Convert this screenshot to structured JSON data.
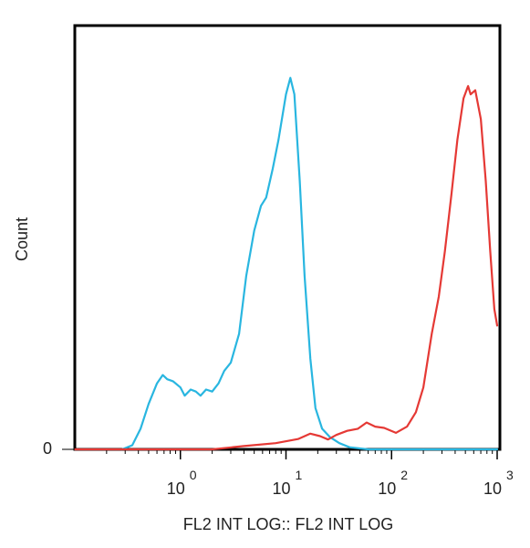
{
  "chart_data": {
    "type": "line",
    "title": "",
    "xlabel": "FL2 INT LOG:: FL2 INT LOG",
    "ylabel": "Count",
    "x_scale": "log",
    "xlim": [
      0.1,
      1000
    ],
    "ylim": [
      0,
      100
    ],
    "grid": false,
    "x_ticks": [
      {
        "base": "10",
        "exp": "0",
        "value": 1
      },
      {
        "base": "10",
        "exp": "1",
        "value": 10
      },
      {
        "base": "10",
        "exp": "2",
        "value": 100
      },
      {
        "base": "10",
        "exp": "3",
        "value": 1000
      }
    ],
    "y_ticks": [
      {
        "label": "0",
        "value": 0
      }
    ],
    "series": [
      {
        "color": "#29b6e0",
        "points": [
          [
            0.28,
            0
          ],
          [
            0.35,
            1
          ],
          [
            0.42,
            5
          ],
          [
            0.5,
            11
          ],
          [
            0.6,
            16
          ],
          [
            0.68,
            18
          ],
          [
            0.75,
            17
          ],
          [
            0.85,
            16.5
          ],
          [
            1.0,
            15
          ],
          [
            1.1,
            13
          ],
          [
            1.25,
            14.5
          ],
          [
            1.4,
            14
          ],
          [
            1.55,
            13
          ],
          [
            1.75,
            14.5
          ],
          [
            2.0,
            14
          ],
          [
            2.3,
            16
          ],
          [
            2.6,
            19
          ],
          [
            3.0,
            21
          ],
          [
            3.6,
            28
          ],
          [
            4.2,
            42
          ],
          [
            5.0,
            53
          ],
          [
            5.8,
            59
          ],
          [
            6.5,
            61
          ],
          [
            7.5,
            68
          ],
          [
            8.5,
            75
          ],
          [
            10.0,
            86
          ],
          [
            11.0,
            90
          ],
          [
            12.0,
            86
          ],
          [
            13.5,
            65
          ],
          [
            15.0,
            42
          ],
          [
            17.0,
            22
          ],
          [
            19.0,
            10
          ],
          [
            22.0,
            5
          ],
          [
            26.0,
            3
          ],
          [
            32.0,
            1.5
          ],
          [
            40.0,
            0.5
          ],
          [
            60.0,
            0
          ],
          [
            1000.0,
            0
          ]
        ]
      },
      {
        "color": "#e53935",
        "points": [
          [
            0.1,
            0
          ],
          [
            2.0,
            0
          ],
          [
            4.0,
            0.8
          ],
          [
            8.0,
            1.5
          ],
          [
            13.0,
            2.5
          ],
          [
            17.0,
            3.8
          ],
          [
            21.0,
            3.2
          ],
          [
            25.0,
            2.4
          ],
          [
            30.0,
            3.5
          ],
          [
            38.0,
            4.5
          ],
          [
            48.0,
            5
          ],
          [
            58.0,
            6.5
          ],
          [
            70.0,
            5.5
          ],
          [
            85.0,
            5.2
          ],
          [
            110.0,
            4
          ],
          [
            140.0,
            5.5
          ],
          [
            170.0,
            9
          ],
          [
            200.0,
            15
          ],
          [
            240.0,
            28
          ],
          [
            280.0,
            37
          ],
          [
            320.0,
            48
          ],
          [
            370.0,
            62
          ],
          [
            420.0,
            75
          ],
          [
            480.0,
            85
          ],
          [
            530.0,
            88
          ],
          [
            560.0,
            86
          ],
          [
            620.0,
            87
          ],
          [
            700.0,
            80
          ],
          [
            780.0,
            65
          ],
          [
            860.0,
            48
          ],
          [
            940.0,
            34
          ],
          [
            1000.0,
            30
          ]
        ]
      }
    ]
  }
}
